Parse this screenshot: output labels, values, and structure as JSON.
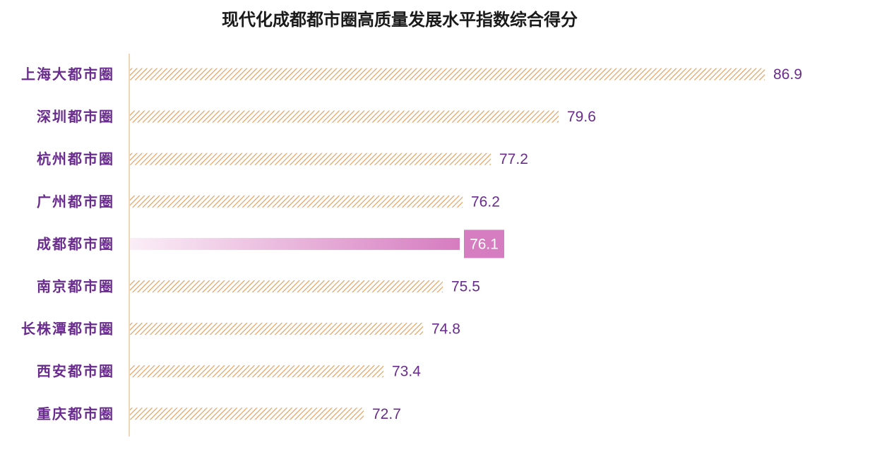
{
  "chart_data": {
    "type": "bar",
    "orientation": "horizontal",
    "title": "现代化成都都市圈高质量发展水平指数综合得分",
    "categories": [
      "上海大都市圈",
      "深圳都市圈",
      "杭州都市圈",
      "广州都市圈",
      "成都都市圈",
      "南京都市圈",
      "长株潭都市圈",
      "西安都市圈",
      "重庆都市圈"
    ],
    "values": [
      86.9,
      79.6,
      77.2,
      76.2,
      76.1,
      75.5,
      74.8,
      73.4,
      72.7
    ],
    "value_labels": [
      "86.9",
      "79.6",
      "77.2",
      "76.2",
      "76.1",
      "75.5",
      "74.8",
      "73.4",
      "72.7"
    ],
    "highlight_category": "成都都市圈",
    "xlim": [
      64.4,
      86.9
    ],
    "grid": false,
    "legend": "none",
    "colors": {
      "bar_pattern": "#e39a55",
      "highlight_start": "#fbeef7",
      "highlight_end": "#d67cc0",
      "highlight_label_bg": "#d67cc0",
      "label_text": "#6a2b8f",
      "axis_line": "#e8c9a0"
    }
  }
}
